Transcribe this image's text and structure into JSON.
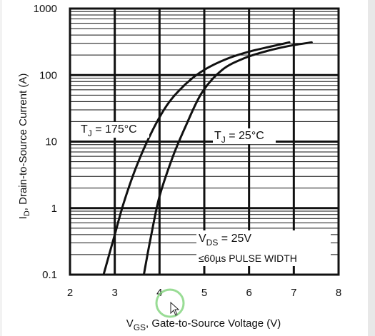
{
  "chart_data": {
    "type": "line",
    "x_axis": {
      "label_main": "V",
      "label_sub": "GS",
      "label_rest": ", Gate-to-Source Voltage (V)",
      "range": [
        2,
        8
      ],
      "ticks": [
        2,
        3,
        4,
        5,
        6,
        7,
        8
      ],
      "tick_labels": [
        "2",
        "3",
        "4",
        "5",
        "6",
        "7",
        "8"
      ]
    },
    "y_axis": {
      "label_main": "I",
      "label_sub": "D",
      "label_rest": ", Drain-to-Source Current  (A)",
      "scale": "log",
      "range": [
        0.1,
        1000
      ],
      "ticks": [
        0.1,
        1,
        10,
        100,
        1000
      ],
      "tick_labels": [
        "0.1",
        "1",
        "10",
        "100",
        "1000"
      ]
    },
    "grid": true,
    "series": [
      {
        "name": "TJ = 175°C",
        "points": [
          [
            2.75,
            0.1
          ],
          [
            3.0,
            0.4
          ],
          [
            3.2,
            1.2
          ],
          [
            3.5,
            4.5
          ],
          [
            3.85,
            15
          ],
          [
            4.2,
            38
          ],
          [
            4.6,
            75
          ],
          [
            5.0,
            120
          ],
          [
            5.5,
            175
          ],
          [
            6.0,
            225
          ],
          [
            6.5,
            270
          ],
          [
            6.9,
            310
          ]
        ]
      },
      {
        "name": "TJ = 25°C",
        "points": [
          [
            3.65,
            0.1
          ],
          [
            3.8,
            0.35
          ],
          [
            4.0,
            1.5
          ],
          [
            4.3,
            6
          ],
          [
            4.6,
            18
          ],
          [
            4.95,
            55
          ],
          [
            5.4,
            120
          ],
          [
            5.9,
            180
          ],
          [
            6.4,
            230
          ],
          [
            6.9,
            275
          ],
          [
            7.4,
            310
          ]
        ]
      }
    ],
    "annotations": {
      "tj175": {
        "t": "T",
        "sub": "J",
        "rest": " = 175°C"
      },
      "tj25": {
        "t": "T",
        "sub": "J",
        "rest": " = 25°C"
      },
      "vds": {
        "t": "V",
        "sub": "DS",
        "rest": " = 25V"
      },
      "pulse": "≤60µs PULSE WIDTH"
    }
  },
  "colors": {
    "curve": "#111111",
    "grid": "#111111",
    "cursor_ring": "#7fd37a"
  },
  "overlay": {
    "cursor_icon": "mouse-pointer-icon"
  }
}
